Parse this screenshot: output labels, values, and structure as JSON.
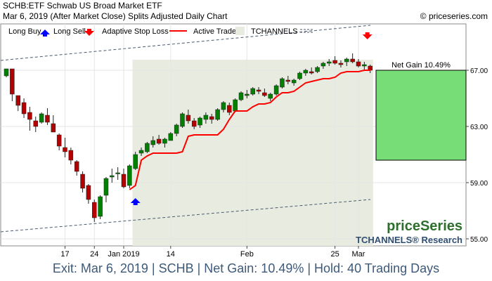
{
  "header": {
    "line1": "SCHB:ETF Schwab US Broad Market ETF",
    "line2": "Mar 6, 2019 (After Market Close)  Splits Adjusted Daily Chart",
    "site": "© priceseries.com"
  },
  "legend": {
    "long_buy": "Long Buy",
    "long_sell": "Long Sell",
    "adaptive_stop": "Adaptive Stop Loss",
    "active_trade": "Active Trade",
    "tchannels": "TCHANNELS"
  },
  "branding": {
    "logo": "priceSeries",
    "tchannels_research": "TCHANNELS® Research"
  },
  "footer": "Exit: Mar 6, 2019 | SCHB | Net Gain: 10.49% | Hold: 40 Trading Days",
  "colors": {
    "up": "#008000",
    "down": "#b30000",
    "stop": "#ff0000",
    "active": "#e8ebdf",
    "gain": "#77dd77",
    "buy": "#0000ff",
    "sell": "#ff0000",
    "channel": "#4a5a70"
  },
  "chart_data": {
    "type": "candlestick",
    "ylim": [
      54.5,
      70.3
    ],
    "ytick_labels": [
      "55.00",
      "59.00",
      "63.00",
      "67.00"
    ],
    "yticks": [
      55,
      59,
      63,
      67
    ],
    "xtick_labels": [
      {
        "label": "17",
        "i": 10
      },
      {
        "label": "24",
        "i": 15
      },
      {
        "label": "Jan 2019",
        "i": 20
      },
      {
        "label": "14",
        "i": 28
      },
      {
        "label": "Feb",
        "i": 41
      },
      {
        "label": "25",
        "i": 56
      },
      {
        "label": "Mar",
        "i": 60
      }
    ],
    "net_gain_label": "Net Gain 10.49%",
    "entry_price": 60.6,
    "exit_price": 67.0,
    "entry_index": 22,
    "exit_index": 62,
    "sell_marker_price": 69.4,
    "buy_marker_price": 57.7,
    "active_start_index": 22,
    "active_end_index": 62,
    "gain_box": {
      "top": 67.0,
      "bottom": 60.6
    },
    "channel_upper": {
      "start": 67.7,
      "end": 70.2
    },
    "channel_lower": {
      "start": 55.5,
      "end": 57.8
    },
    "candles": [
      [
        66.6,
        67.1,
        66.5,
        67.1
      ],
      [
        67.1,
        67.1,
        64.8,
        65.3
      ],
      [
        65.2,
        65.2,
        64.1,
        64.5
      ],
      [
        64.7,
        65.0,
        63.6,
        63.9
      ],
      [
        64.0,
        64.4,
        62.7,
        63.5
      ],
      [
        63.4,
        63.7,
        62.6,
        63.0
      ],
      [
        63.3,
        64.0,
        63.2,
        63.9
      ],
      [
        63.8,
        64.3,
        63.1,
        63.3
      ],
      [
        63.2,
        63.8,
        62.6,
        62.6
      ],
      [
        62.4,
        62.5,
        61.3,
        61.6
      ],
      [
        61.5,
        62.2,
        60.8,
        61.2
      ],
      [
        61.3,
        61.5,
        60.3,
        60.6
      ],
      [
        60.5,
        60.6,
        59.5,
        59.8
      ],
      [
        59.6,
        59.8,
        58.3,
        58.6
      ],
      [
        58.8,
        58.9,
        57.5,
        57.8
      ],
      [
        57.6,
        57.8,
        56.2,
        56.5
      ],
      [
        56.6,
        58.1,
        56.4,
        58.0
      ],
      [
        58.1,
        59.4,
        57.6,
        59.3
      ],
      [
        59.4,
        60.0,
        59.0,
        59.5
      ],
      [
        59.7,
        60.1,
        59.2,
        59.7
      ],
      [
        59.6,
        60.0,
        58.6,
        58.7
      ],
      [
        58.8,
        60.3,
        58.6,
        60.2
      ],
      [
        60.0,
        61.2,
        59.9,
        61.0
      ],
      [
        61.1,
        61.5,
        60.9,
        61.3
      ],
      [
        61.2,
        61.9,
        61.1,
        61.8
      ],
      [
        61.7,
        62.3,
        61.5,
        62.0
      ],
      [
        62.1,
        62.4,
        61.7,
        61.8
      ],
      [
        61.8,
        62.2,
        61.5,
        62.1
      ],
      [
        62.0,
        62.6,
        62.0,
        62.5
      ],
      [
        62.5,
        63.2,
        62.3,
        63.1
      ],
      [
        63.0,
        64.0,
        62.9,
        63.9
      ],
      [
        63.8,
        64.2,
        63.2,
        63.4
      ],
      [
        63.4,
        63.6,
        62.8,
        63.0
      ],
      [
        63.1,
        63.7,
        62.9,
        63.6
      ],
      [
        63.5,
        64.0,
        63.2,
        63.8
      ],
      [
        63.7,
        63.9,
        63.2,
        63.5
      ],
      [
        63.5,
        64.3,
        63.4,
        64.2
      ],
      [
        64.2,
        64.8,
        64.0,
        64.7
      ],
      [
        64.5,
        64.7,
        63.8,
        64.0
      ],
      [
        64.1,
        65.0,
        64.0,
        64.9
      ],
      [
        64.9,
        65.5,
        64.8,
        65.4
      ],
      [
        65.2,
        65.6,
        65.0,
        65.3
      ],
      [
        65.3,
        65.8,
        65.2,
        65.7
      ],
      [
        65.6,
        65.8,
        65.3,
        65.5
      ],
      [
        65.4,
        65.7,
        65.1,
        65.2
      ],
      [
        65.0,
        65.4,
        64.8,
        65.3
      ],
      [
        65.3,
        66.0,
        65.2,
        65.9
      ],
      [
        65.8,
        66.5,
        65.7,
        66.4
      ],
      [
        66.3,
        66.6,
        66.0,
        66.2
      ],
      [
        66.1,
        66.4,
        65.9,
        66.3
      ],
      [
        66.4,
        66.9,
        66.3,
        66.8
      ],
      [
        66.8,
        67.1,
        66.6,
        67.0
      ],
      [
        66.9,
        67.2,
        66.7,
        66.8
      ],
      [
        66.9,
        67.3,
        66.8,
        67.2
      ],
      [
        67.3,
        67.6,
        67.1,
        67.5
      ],
      [
        67.5,
        67.8,
        67.3,
        67.6
      ],
      [
        67.7,
        68.0,
        67.4,
        67.5
      ],
      [
        67.5,
        67.7,
        67.2,
        67.4
      ],
      [
        67.6,
        67.9,
        67.3,
        67.8
      ],
      [
        67.8,
        68.2,
        67.5,
        67.6
      ],
      [
        67.6,
        67.8,
        67.2,
        67.3
      ],
      [
        67.3,
        67.6,
        67.0,
        67.4
      ],
      [
        67.3,
        67.4,
        66.8,
        67.0
      ]
    ],
    "stop_loss": [
      [
        21,
        58.5
      ],
      [
        22,
        58.8
      ],
      [
        23,
        60.6
      ],
      [
        24,
        60.9
      ],
      [
        25,
        61.1
      ],
      [
        26,
        61.1
      ],
      [
        27,
        61.1
      ],
      [
        28,
        61.1
      ],
      [
        29,
        61.1
      ],
      [
        30,
        61.2
      ],
      [
        31,
        62.3
      ],
      [
        32,
        62.4
      ],
      [
        33,
        62.4
      ],
      [
        34,
        62.4
      ],
      [
        35,
        62.4
      ],
      [
        36,
        62.4
      ],
      [
        37,
        62.8
      ],
      [
        38,
        63.5
      ],
      [
        39,
        64.1
      ],
      [
        40,
        64.1
      ],
      [
        41,
        64.1
      ],
      [
        42,
        64.4
      ],
      [
        43,
        64.6
      ],
      [
        44,
        64.6
      ],
      [
        45,
        64.7
      ],
      [
        46,
        65.1
      ],
      [
        47,
        65.4
      ],
      [
        48,
        65.4
      ],
      [
        49,
        65.5
      ],
      [
        50,
        65.8
      ],
      [
        51,
        66.1
      ],
      [
        52,
        66.2
      ],
      [
        53,
        66.3
      ],
      [
        54,
        66.4
      ],
      [
        55,
        66.4
      ],
      [
        56,
        66.5
      ],
      [
        57,
        66.8
      ],
      [
        58,
        66.9
      ],
      [
        59,
        66.9
      ],
      [
        60,
        66.9
      ],
      [
        61,
        67.0
      ],
      [
        62,
        67.0
      ]
    ]
  }
}
